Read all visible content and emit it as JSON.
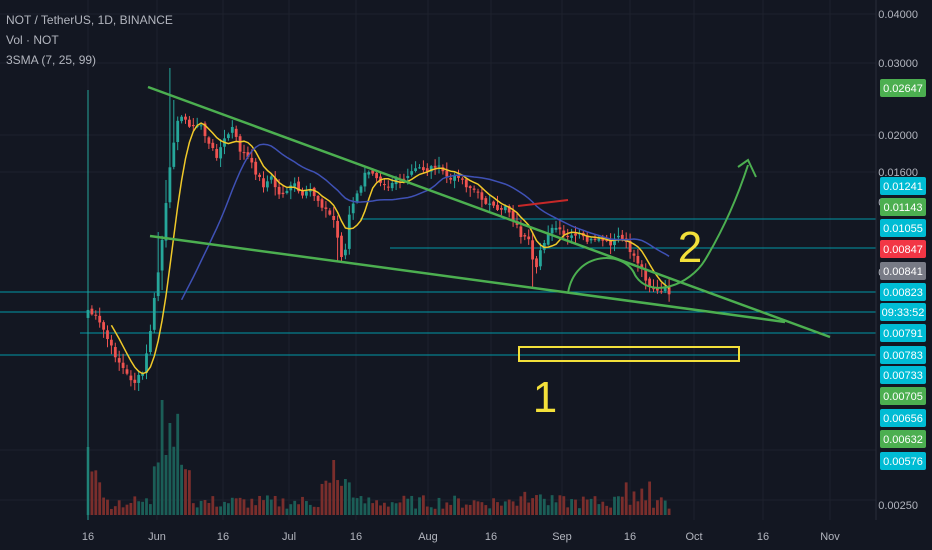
{
  "header": {
    "symbol": "NOT / TetherUS, 1D, BINANCE",
    "volume": "Vol · NOT",
    "indicator": "3SMA (7, 25, 99)"
  },
  "chart_data": {
    "type": "candlestick",
    "symbol": "NOTUSDT",
    "interval": "1D",
    "exchange": "BINANCE",
    "x_ticks": [
      "16",
      "Jun",
      "16",
      "Jul",
      "16",
      "Aug",
      "16",
      "Sep",
      "16",
      "Oct",
      "16",
      "Nov"
    ],
    "y_ticks": [
      "0.04000",
      "0.03000",
      "0.02000",
      "0.01600",
      "0.01055",
      "0.00841",
      "0.00250"
    ],
    "price_labels": [
      {
        "value": "0.02647",
        "color": "#4caf50"
      },
      {
        "value": "0.01241",
        "color": "#00bcd4"
      },
      {
        "value": "0.01143",
        "color": "#4caf50"
      },
      {
        "value": "0.01055",
        "color": "#00bcd4"
      },
      {
        "value": "0.00847",
        "color": "#f23645"
      },
      {
        "value": "0.00841",
        "color": "#787b86"
      },
      {
        "value": "0.00823",
        "color": "#00bcd4"
      },
      {
        "value": "09:33:52",
        "color": "#00bcd4"
      },
      {
        "value": "0.00791",
        "color": "#00bcd4"
      },
      {
        "value": "0.00783",
        "color": "#00bcd4"
      },
      {
        "value": "0.00733",
        "color": "#00bcd4"
      },
      {
        "value": "0.00705",
        "color": "#4caf50"
      },
      {
        "value": "0.00656",
        "color": "#00bcd4"
      },
      {
        "value": "0.00632",
        "color": "#4caf50"
      },
      {
        "value": "0.00576",
        "color": "#00bcd4"
      }
    ],
    "annotations": [
      "1",
      "2"
    ],
    "colors": {
      "up": "#26a69a",
      "down": "#ef5350",
      "sma7": "#f0c929",
      "sma25": "#3f51b5",
      "trend": "#4caf50",
      "box": "#f3e03a"
    }
  }
}
